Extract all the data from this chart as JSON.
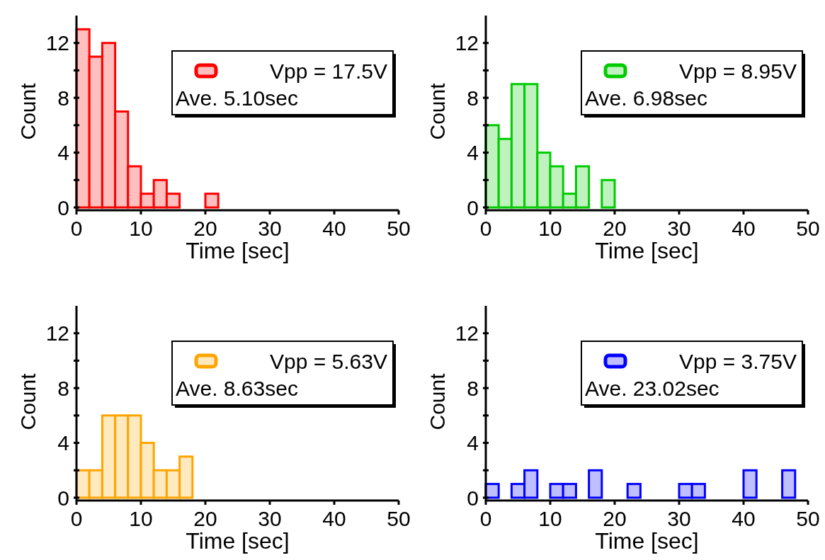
{
  "chart_data": [
    {
      "type": "histogram",
      "xlabel": "Time [sec]",
      "ylabel": "Count",
      "bins": [
        0,
        2,
        4,
        6,
        8,
        10,
        12,
        14,
        16,
        18,
        20,
        22,
        24,
        26,
        28,
        30,
        32,
        34,
        36,
        38,
        40,
        42,
        44,
        46,
        48,
        50
      ],
      "series": [
        {
          "name": "Vpp = 17.5V",
          "color": "#ff0000",
          "values": [
            13,
            11,
            12,
            7,
            3,
            1,
            2,
            1,
            0,
            0,
            1,
            0,
            0,
            0,
            0,
            0,
            0,
            0,
            0,
            0,
            0,
            0,
            0,
            0,
            0
          ]
        }
      ],
      "xlim": [
        0,
        50
      ],
      "xticks": [
        0,
        10,
        20,
        30,
        40,
        50
      ],
      "ylim": [
        0,
        14
      ],
      "yticks": [
        0,
        {
          "value": 2,
          "label": null
        },
        4,
        {
          "value": 6,
          "label": null
        },
        8,
        {
          "value": 10,
          "label": null
        },
        12
      ],
      "legend": "top right",
      "annotations": [
        "Ave. 5.10sec"
      ]
    },
    {
      "type": "histogram",
      "xlabel": "Time [sec]",
      "ylabel": "Count",
      "bins": [
        0,
        2,
        4,
        6,
        8,
        10,
        12,
        14,
        16,
        18,
        20,
        22,
        24,
        26,
        28,
        30,
        32,
        34,
        36,
        38,
        40,
        42,
        44,
        46,
        48,
        50
      ],
      "series": [
        {
          "name": "Vpp = 8.95V",
          "color": "#00cc00",
          "values": [
            6,
            5,
            9,
            9,
            4,
            3,
            1,
            3,
            0,
            2,
            0,
            0,
            0,
            0,
            0,
            0,
            0,
            0,
            0,
            0,
            0,
            0,
            0,
            0,
            0
          ]
        }
      ],
      "xlim": [
        0,
        50
      ],
      "xticks": [
        0,
        10,
        20,
        30,
        40,
        50
      ],
      "ylim": [
        0,
        14
      ],
      "yticks": [
        0,
        {
          "value": 2,
          "label": null
        },
        4,
        {
          "value": 6,
          "label": null
        },
        8,
        {
          "value": 10,
          "label": null
        },
        12
      ],
      "legend": "top right",
      "annotations": [
        "Ave. 6.98sec"
      ]
    },
    {
      "type": "histogram",
      "xlabel": "Time [sec]",
      "ylabel": "Count",
      "bins": [
        0,
        2,
        4,
        6,
        8,
        10,
        12,
        14,
        16,
        18,
        20,
        22,
        24,
        26,
        28,
        30,
        32,
        34,
        36,
        38,
        40,
        42,
        44,
        46,
        48,
        50
      ],
      "series": [
        {
          "name": "Vpp = 5.63V",
          "color": "#ffa500",
          "values": [
            2,
            2,
            6,
            6,
            6,
            4,
            2,
            2,
            3,
            0,
            0,
            0,
            0,
            0,
            0,
            0,
            0,
            0,
            0,
            0,
            0,
            0,
            0,
            0,
            0
          ]
        }
      ],
      "xlim": [
        0,
        50
      ],
      "xticks": [
        0,
        10,
        20,
        30,
        40,
        50
      ],
      "ylim": [
        0,
        14
      ],
      "yticks": [
        0,
        {
          "value": 2,
          "label": null
        },
        4,
        {
          "value": 6,
          "label": null
        },
        8,
        {
          "value": 10,
          "label": null
        },
        12
      ],
      "legend": "top right",
      "annotations": [
        "Ave. 8.63sec"
      ]
    },
    {
      "type": "histogram",
      "xlabel": "Time [sec]",
      "ylabel": "Count",
      "bins": [
        0,
        2,
        4,
        6,
        8,
        10,
        12,
        14,
        16,
        18,
        20,
        22,
        24,
        26,
        28,
        30,
        32,
        34,
        36,
        38,
        40,
        42,
        44,
        46,
        48,
        50
      ],
      "series": [
        {
          "name": "Vpp = 3.75V",
          "color": "#0000ff",
          "values": [
            1,
            0,
            1,
            2,
            0,
            1,
            1,
            0,
            2,
            0,
            0,
            1,
            0,
            0,
            0,
            1,
            1,
            0,
            0,
            0,
            2,
            0,
            0,
            2,
            0
          ]
        }
      ],
      "xlim": [
        0,
        50
      ],
      "xticks": [
        0,
        10,
        20,
        30,
        40,
        50
      ],
      "ylim": [
        0,
        14
      ],
      "yticks": [
        0,
        {
          "value": 2,
          "label": null
        },
        4,
        {
          "value": 6,
          "label": null
        },
        8,
        {
          "value": 10,
          "label": null
        },
        12
      ],
      "legend": "top right",
      "annotations": [
        "Ave. 23.02sec"
      ]
    }
  ]
}
